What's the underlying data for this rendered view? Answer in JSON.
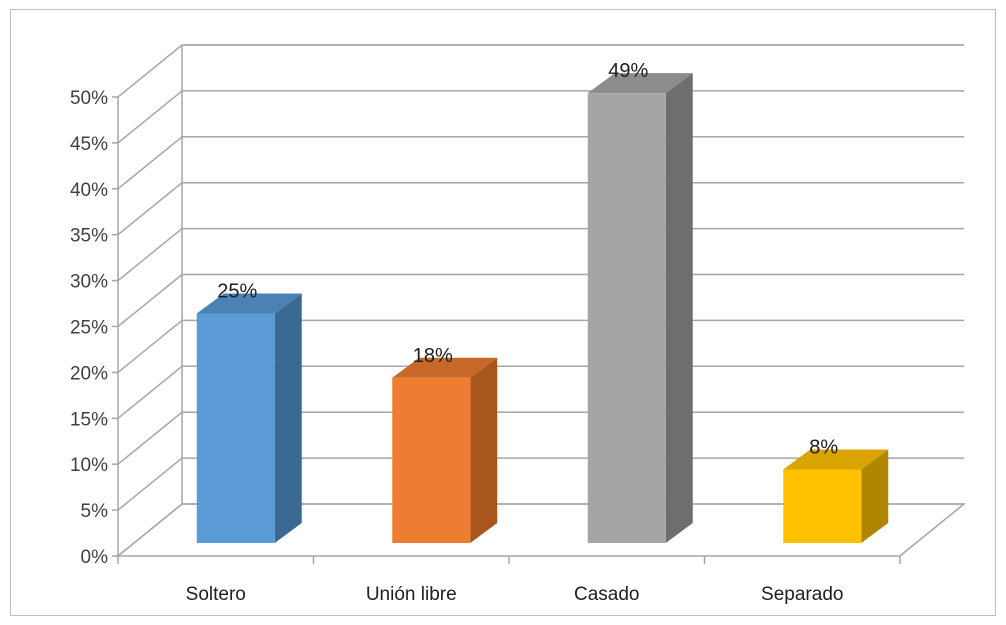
{
  "chart_data": {
    "type": "bar",
    "three_d": true,
    "categories": [
      "Soltero",
      "Unión libre",
      "Casado",
      "Separado"
    ],
    "values": [
      25,
      18,
      49,
      8
    ],
    "data_labels": [
      "25%",
      "18%",
      "49%",
      "8%"
    ],
    "ylim": [
      0,
      50
    ],
    "yticks": [
      "0%",
      "5%",
      "10%",
      "15%",
      "20%",
      "25%",
      "30%",
      "35%",
      "40%",
      "45%",
      "50%"
    ],
    "grid": true,
    "legend": "none",
    "colors": {
      "front": [
        "#5b9bd5",
        "#ed7d31",
        "#a5a5a5",
        "#ffc000"
      ],
      "side": [
        "#3a6a93",
        "#a9561e",
        "#6e6e6e",
        "#b08500"
      ],
      "top": [
        "#4a82b6",
        "#c8672a",
        "#8c8c8c",
        "#d9a300"
      ]
    }
  }
}
